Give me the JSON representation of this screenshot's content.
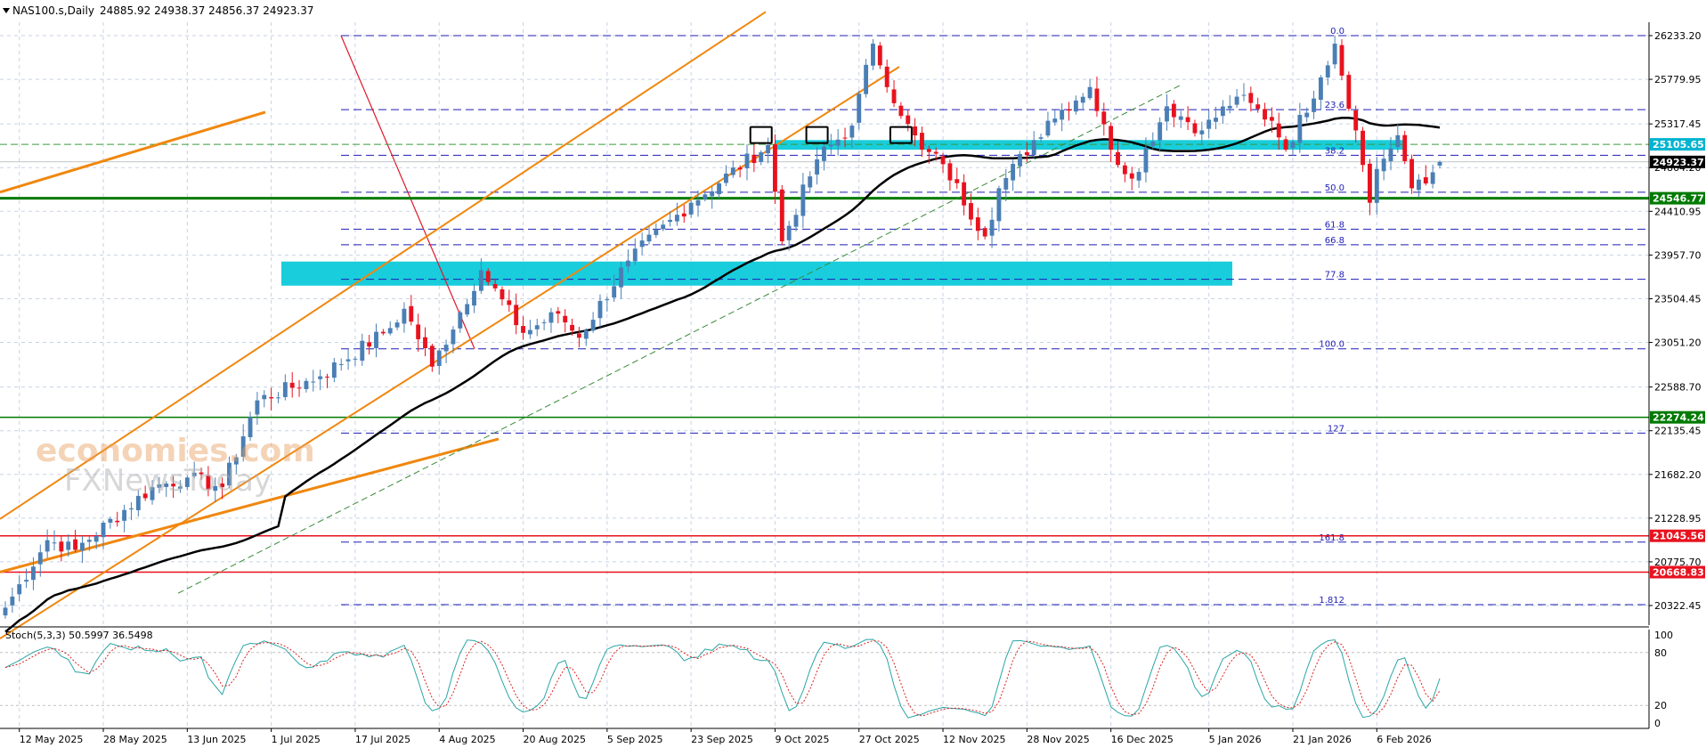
{
  "header": {
    "symbol": "NAS100.s,Daily",
    "ohlc": "24885.92 24938.37 24856.37 24923.37",
    "dropdown_icon": "triangle-down-icon"
  },
  "indicator": {
    "label": "Stoch(5,3,3) 50.5997 36.5498"
  },
  "watermark": {
    "line1": "economies.com",
    "line2": "FXNewsToday"
  },
  "colors": {
    "up": "#4a7fb5",
    "down": "#e8121e",
    "ma": "#000000",
    "channel": "#f0870e",
    "zone": "#00c8d8",
    "fib": "#1e1eb4",
    "support_green": "#007a00",
    "red_level": "#e8121e",
    "stoch_main": "#2aa5a5",
    "stoch_signal": "#dd2222",
    "grid": "#c8d2e6"
  },
  "chart_data": {
    "type": "candlestick",
    "symbol": "NAS100.s",
    "timeframe": "Daily",
    "last": {
      "open": 24885.92,
      "high": 24938.37,
      "low": 24856.37,
      "close": 24923.37
    },
    "x_tick_labels": [
      "12 May 2025",
      "28 May 2025",
      "13 Jun 2025",
      "1 Jul 2025",
      "17 Jul 2025",
      "4 Aug 2025",
      "20 Aug 2025",
      "5 Sep 2025",
      "23 Sep 2025",
      "9 Oct 2025",
      "27 Oct 2025",
      "12 Nov 2025",
      "28 Nov 2025",
      "16 Dec 2025",
      "5 Jan 2026",
      "21 Jan 2026",
      "6 Feb 2026"
    ],
    "y_tick_labels": [
      "26233.20",
      "25779.95",
      "25317.45",
      "24864.20",
      "24410.95",
      "23957.70",
      "23504.45",
      "23051.20",
      "22588.70",
      "22135.45",
      "21682.20",
      "21228.95",
      "20775.70",
      "20322.45"
    ],
    "ylim": [
      20150,
      26480
    ],
    "price_labels": [
      {
        "text": "25105.65",
        "color": "#00b4d0"
      },
      {
        "text": "24923.37",
        "color": "#000000"
      },
      {
        "text": "24546.77",
        "color": "#007a00"
      },
      {
        "text": "22274.24",
        "color": "#007a00"
      },
      {
        "text": "21045.56",
        "color": "#e8121e"
      },
      {
        "text": "20668.83",
        "color": "#e8121e"
      }
    ],
    "fib_levels": [
      {
        "label": "0.0",
        "price": 26233.2
      },
      {
        "label": "23.6",
        "price": 25466
      },
      {
        "label": "38.2",
        "price": 24992
      },
      {
        "label": "50.0",
        "price": 24609
      },
      {
        "label": "61.8",
        "price": 24226
      },
      {
        "label": "66.8",
        "price": 24064
      },
      {
        "label": "77.8",
        "price": 23706
      },
      {
        "label": "100.0",
        "price": 22985
      },
      {
        "label": "127",
        "price": 22111
      },
      {
        "label": "161.8",
        "price": 20980
      },
      {
        "label": "1.812",
        "price": 20332
      }
    ],
    "horizontal_levels": [
      {
        "price": 24546.77,
        "color": "#007a00",
        "width": 3
      },
      {
        "price": 22274.24,
        "color": "#007a00",
        "width": 1.5
      },
      {
        "price": 21045.56,
        "color": "#e8121e",
        "width": 1.5
      },
      {
        "price": 20668.83,
        "color": "#e8121e",
        "width": 1.5
      }
    ],
    "zones": [
      {
        "price_high": 25150,
        "price_low": 25050,
        "color": "#00c8d8"
      },
      {
        "price_high": 23890,
        "price_low": 23640,
        "color": "#00c8d8"
      }
    ],
    "anchors": [
      {
        "name": "start",
        "date": "2025-05-08",
        "close": 20300
      },
      {
        "date": "2025-05-16",
        "close": 21000
      },
      {
        "date": "2025-05-22",
        "close": 20900
      },
      {
        "date": "2025-06-06",
        "close": 21550
      },
      {
        "date": "2025-06-13",
        "close": 21650
      },
      {
        "date": "2025-06-20",
        "close": 21550
      },
      {
        "date": "2025-06-27",
        "close": 22450
      },
      {
        "date": "2025-07-10",
        "close": 22700
      },
      {
        "date": "2025-07-24",
        "close": 23200
      },
      {
        "date": "2025-07-28",
        "close": 23400
      },
      {
        "date": "2025-08-01",
        "close": 22800
      },
      {
        "date": "2025-08-12",
        "close": 23800
      },
      {
        "date": "2025-08-20",
        "close": 23150
      },
      {
        "date": "2025-08-27",
        "close": 23350
      },
      {
        "date": "2025-09-01",
        "close": 23100
      },
      {
        "date": "2025-09-10",
        "close": 23900
      },
      {
        "date": "2025-09-23",
        "close": 24500
      },
      {
        "date": "2025-10-08",
        "close": 25100
      },
      {
        "date": "2025-10-10",
        "close": 24100
      },
      {
        "date": "2025-10-17",
        "close": 24950
      },
      {
        "date": "2025-10-24",
        "close": 25300
      },
      {
        "date": "2025-10-29",
        "close": 26150
      },
      {
        "date": "2025-11-04",
        "close": 25400
      },
      {
        "date": "2025-11-07",
        "close": 25050
      },
      {
        "date": "2025-11-12",
        "close": 24900
      },
      {
        "date": "2025-11-20",
        "close": 24150
      },
      {
        "date": "2025-11-24",
        "close": 24650
      },
      {
        "date": "2025-12-03",
        "close": 25350
      },
      {
        "date": "2025-12-11",
        "close": 25700
      },
      {
        "date": "2025-12-16",
        "close": 25050
      },
      {
        "date": "2025-12-19",
        "close": 24750
      },
      {
        "date": "2025-12-26",
        "close": 25500
      },
      {
        "date": "2026-01-02",
        "close": 25250
      },
      {
        "date": "2026-01-09",
        "close": 25600
      },
      {
        "date": "2026-01-16",
        "close": 25350
      },
      {
        "date": "2026-01-20",
        "close": 25050
      },
      {
        "date": "2026-01-27",
        "close": 25800
      },
      {
        "date": "2026-01-29",
        "close": 26150
      },
      {
        "date": "2026-02-03",
        "close": 25250
      },
      {
        "date": "2026-02-05",
        "close": 24500
      },
      {
        "date": "2026-02-06",
        "close": 24850
      },
      {
        "date": "2026-02-11",
        "close": 25200
      },
      {
        "date": "2026-02-13",
        "close": 24650
      },
      {
        "date": "2026-02-17",
        "close": 24700
      },
      {
        "date": "2026-02-19",
        "close": 24923
      }
    ],
    "stochastic": {
      "params": "5,3,3",
      "main": 50.5997,
      "signal": 36.5498,
      "levels": [
        "100",
        "80",
        "20",
        "0"
      ]
    }
  }
}
